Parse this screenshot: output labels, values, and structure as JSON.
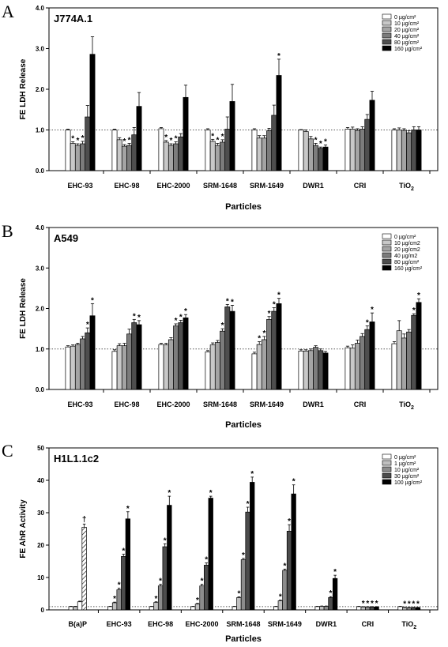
{
  "colors": {
    "series": [
      "#ffffff",
      "#c8c8c8",
      "#a4a4a4",
      "#7c7c7c",
      "#4e4e4e",
      "#000000"
    ],
    "h1l_series": [
      "#ffffff",
      "#c0c0c0",
      "#8c8c8c",
      "#4c4c4c",
      "#000000"
    ],
    "reference_line": "#555555"
  },
  "chart_data": [
    {
      "panel_letter": "A",
      "cell_line": "J774A.1",
      "type": "bar",
      "ylabel": "FE LDH Release",
      "xlabel": "Particles",
      "ylim": [
        0,
        4
      ],
      "yticks": [
        "0.0",
        "1.0",
        "2.0",
        "3.0",
        "4.0"
      ],
      "reference_line": 1.0,
      "legend_position": "top-right",
      "categories": [
        "EHC-93",
        "EHC-98",
        "EHC-2000",
        "SRM-1648",
        "SRM-1649",
        "DWR1",
        "CRI",
        "TiO2"
      ],
      "category_labels": [
        {
          "main": "EHC-93",
          "sub": ""
        },
        {
          "main": "EHC-98",
          "sub": ""
        },
        {
          "main": "EHC-2000",
          "sub": ""
        },
        {
          "main": "SRM-1648",
          "sub": ""
        },
        {
          "main": "SRM-1649",
          "sub": ""
        },
        {
          "main": "DWR1",
          "sub": ""
        },
        {
          "main": "CRI",
          "sub": ""
        },
        {
          "main": "TiO",
          "sub": "2"
        }
      ],
      "series": [
        {
          "name": "0 µg/cm²",
          "values": [
            1.0,
            1.0,
            1.03,
            1.0,
            1.0,
            1.0,
            1.02,
            1.0
          ],
          "errors": [
            0.02,
            0.02,
            0.03,
            0.03,
            0.03,
            0.01,
            0.04,
            0.03
          ],
          "sig": [
            false,
            false,
            false,
            false,
            false,
            false,
            false,
            false
          ]
        },
        {
          "name": "10 µg/cm²",
          "values": [
            0.67,
            0.76,
            0.7,
            0.72,
            0.8,
            0.96,
            1.02,
            1.0
          ],
          "errors": [
            0.04,
            0.05,
            0.04,
            0.05,
            0.06,
            0.04,
            0.05,
            0.05
          ],
          "sig": [
            true,
            false,
            true,
            true,
            false,
            false,
            false,
            false
          ]
        },
        {
          "name": "20 µg/cm²",
          "values": [
            0.62,
            0.6,
            0.62,
            0.62,
            0.8,
            0.78,
            0.99,
            0.99
          ],
          "errors": [
            0.04,
            0.04,
            0.04,
            0.05,
            0.06,
            0.06,
            0.04,
            0.04
          ],
          "sig": [
            true,
            true,
            true,
            true,
            false,
            false,
            false,
            false
          ]
        },
        {
          "name": "40 µg/cm²",
          "values": [
            0.66,
            0.62,
            0.66,
            0.7,
            0.98,
            0.62,
            1.02,
            0.93
          ],
          "errors": [
            0.06,
            0.05,
            0.05,
            0.06,
            0.06,
            0.05,
            0.06,
            0.05
          ],
          "sig": [
            true,
            true,
            true,
            true,
            false,
            true,
            false,
            false
          ]
        },
        {
          "name": "80 µg/cm²",
          "values": [
            1.32,
            0.88,
            0.83,
            1.02,
            1.36,
            0.55,
            1.26,
            1.0
          ],
          "errors": [
            0.28,
            0.18,
            0.08,
            0.3,
            0.25,
            0.03,
            0.12,
            0.08
          ],
          "sig": [
            false,
            false,
            false,
            false,
            false,
            true,
            false,
            false
          ]
        },
        {
          "name": "160 µg/cm²",
          "values": [
            2.86,
            1.58,
            1.8,
            1.7,
            2.34,
            0.58,
            1.73,
            1.0
          ],
          "errors": [
            0.43,
            0.34,
            0.3,
            0.42,
            0.4,
            0.05,
            0.22,
            0.08
          ],
          "sig": [
            false,
            false,
            false,
            false,
            true,
            true,
            false,
            false
          ]
        }
      ]
    },
    {
      "panel_letter": "B",
      "cell_line": "A549",
      "type": "bar",
      "ylabel": "FE LDH Release",
      "xlabel": "Particles",
      "ylim": [
        0,
        4
      ],
      "yticks": [
        "0.0",
        "1.0",
        "2.0",
        "3.0",
        "4.0"
      ],
      "reference_line": 1.0,
      "legend_position": "top-right",
      "categories": [
        "EHC-93",
        "EHC-98",
        "EHC-2000",
        "SRM-1648",
        "SRM-1649",
        "DWR1",
        "CRI",
        "TiO2"
      ],
      "category_labels": [
        {
          "main": "EHC-93",
          "sub": ""
        },
        {
          "main": "EHC-98",
          "sub": ""
        },
        {
          "main": "EHC-2000",
          "sub": ""
        },
        {
          "main": "SRM-1648",
          "sub": ""
        },
        {
          "main": "SRM-1649",
          "sub": ""
        },
        {
          "main": "DWR1",
          "sub": ""
        },
        {
          "main": "CRI",
          "sub": ""
        },
        {
          "main": "TiO",
          "sub": "2"
        }
      ],
      "series": [
        {
          "name": "0 µg/cm²",
          "values": [
            1.05,
            0.94,
            1.11,
            0.93,
            0.88,
            0.95,
            1.03,
            1.13
          ],
          "errors": [
            0.03,
            0.04,
            0.03,
            0.03,
            0.04,
            0.03,
            0.04,
            0.05
          ],
          "sig": [
            false,
            false,
            false,
            false,
            false,
            false,
            false,
            false
          ]
        },
        {
          "name": "10 µg/cm2",
          "values": [
            1.07,
            1.08,
            1.1,
            1.1,
            1.11,
            0.95,
            1.02,
            1.45
          ],
          "errors": [
            0.03,
            0.05,
            0.04,
            0.05,
            0.07,
            0.03,
            0.08,
            0.25
          ],
          "sig": [
            false,
            false,
            false,
            false,
            true,
            false,
            false,
            false
          ]
        },
        {
          "name": "20 µg/cm2",
          "values": [
            1.11,
            1.08,
            1.23,
            1.16,
            1.23,
            0.96,
            1.14,
            1.27
          ],
          "errors": [
            0.03,
            0.06,
            0.05,
            0.05,
            0.08,
            0.04,
            0.08,
            0.1
          ],
          "sig": [
            false,
            false,
            false,
            false,
            true,
            false,
            false,
            false
          ]
        },
        {
          "name": "40 µg/m2",
          "values": [
            1.25,
            1.37,
            1.57,
            1.44,
            1.73,
            1.04,
            1.31,
            1.42
          ],
          "errors": [
            0.06,
            0.12,
            0.05,
            0.06,
            0.07,
            0.04,
            0.07,
            0.06
          ],
          "sig": [
            false,
            false,
            true,
            true,
            true,
            false,
            false,
            false
          ]
        },
        {
          "name": "80 µg/cm²",
          "values": [
            1.4,
            1.65,
            1.65,
            2.04,
            1.93,
            0.96,
            1.48,
            1.83
          ],
          "errors": [
            0.12,
            0.08,
            0.06,
            0.06,
            0.09,
            0.04,
            0.09,
            0.04
          ],
          "sig": [
            true,
            true,
            true,
            true,
            true,
            false,
            true,
            true
          ]
        },
        {
          "name": "160 µg/cm²",
          "values": [
            1.82,
            1.6,
            1.77,
            1.93,
            2.12,
            0.9,
            1.67,
            2.15
          ],
          "errors": [
            0.3,
            0.1,
            0.08,
            0.15,
            0.13,
            0.04,
            0.22,
            0.09
          ],
          "sig": [
            true,
            true,
            true,
            true,
            true,
            false,
            true,
            true
          ]
        }
      ]
    },
    {
      "panel_letter": "C",
      "cell_line": "H1L1.1c2",
      "type": "bar",
      "ylabel": "FE AhR Activity",
      "xlabel": "Particles",
      "ylim": [
        0,
        50
      ],
      "yticks": [
        "0",
        "10",
        "20",
        "30",
        "40",
        "50"
      ],
      "reference_line": 1.0,
      "legend_position": "top-right",
      "categories": [
        "B(a)P",
        "EHC-93",
        "EHC-98",
        "EHC-2000",
        "SRM-1648",
        "SRM-1649",
        "DWR1",
        "CRI",
        "TiO2"
      ],
      "category_labels": [
        {
          "main": "B(a)P",
          "sub": ""
        },
        {
          "main": "EHC-93",
          "sub": ""
        },
        {
          "main": "EHC-98",
          "sub": ""
        },
        {
          "main": "EHC-2000",
          "sub": ""
        },
        {
          "main": "SRM-1648",
          "sub": ""
        },
        {
          "main": "SRM-1649",
          "sub": ""
        },
        {
          "main": "DWR1",
          "sub": ""
        },
        {
          "main": "CRI",
          "sub": ""
        },
        {
          "main": "TiO",
          "sub": "2"
        }
      ],
      "bap_bars": {
        "values": [
          1.0,
          1.0,
          2.5,
          25.5
        ],
        "errors": [
          0.1,
          0.1,
          0.2,
          1.0
        ],
        "marker": "†"
      },
      "series": [
        {
          "name": "0 µg/cm²",
          "values": [
            null,
            1.0,
            1.0,
            1.0,
            1.0,
            1.0,
            1.0,
            1.0,
            1.0
          ],
          "errors": [
            null,
            0.1,
            0.1,
            0.1,
            0.1,
            0.1,
            0.1,
            0.1,
            0.1
          ],
          "sig": [
            false,
            false,
            false,
            false,
            false,
            false,
            false,
            false,
            false
          ]
        },
        {
          "name": "1 µg/cm²",
          "values": [
            null,
            2.2,
            2.3,
            1.8,
            3.8,
            2.8,
            1.1,
            0.9,
            0.7
          ],
          "errors": [
            null,
            0.2,
            0.2,
            0.2,
            0.2,
            0.2,
            0.1,
            0.1,
            0.1
          ],
          "sig": [
            false,
            true,
            true,
            true,
            true,
            true,
            false,
            true,
            true
          ]
        },
        {
          "name": "10 µg/cm²",
          "values": [
            null,
            6.2,
            7.4,
            7.4,
            15.5,
            12.2,
            1.1,
            0.9,
            0.7
          ],
          "errors": [
            null,
            0.5,
            0.5,
            0.5,
            0.4,
            0.4,
            0.1,
            0.1,
            0.1
          ],
          "sig": [
            false,
            true,
            true,
            true,
            true,
            true,
            false,
            true,
            true
          ]
        },
        {
          "name": "30 µg/cm²",
          "values": [
            null,
            16.5,
            19.5,
            13.8,
            30.2,
            24.3,
            3.8,
            0.9,
            0.7
          ],
          "errors": [
            null,
            0.7,
            0.9,
            0.7,
            1.5,
            2.0,
            0.3,
            0.1,
            0.1
          ],
          "sig": [
            false,
            true,
            true,
            true,
            true,
            true,
            true,
            true,
            true
          ]
        },
        {
          "name": "100 µg/cm²",
          "values": [
            null,
            28.1,
            32.3,
            34.5,
            39.4,
            35.8,
            9.7,
            0.9,
            0.7
          ],
          "errors": [
            null,
            2.2,
            2.8,
            0.6,
            1.6,
            2.8,
            1.0,
            0.1,
            0.1
          ],
          "sig": [
            false,
            true,
            true,
            true,
            true,
            true,
            true,
            true,
            true
          ]
        }
      ]
    }
  ]
}
